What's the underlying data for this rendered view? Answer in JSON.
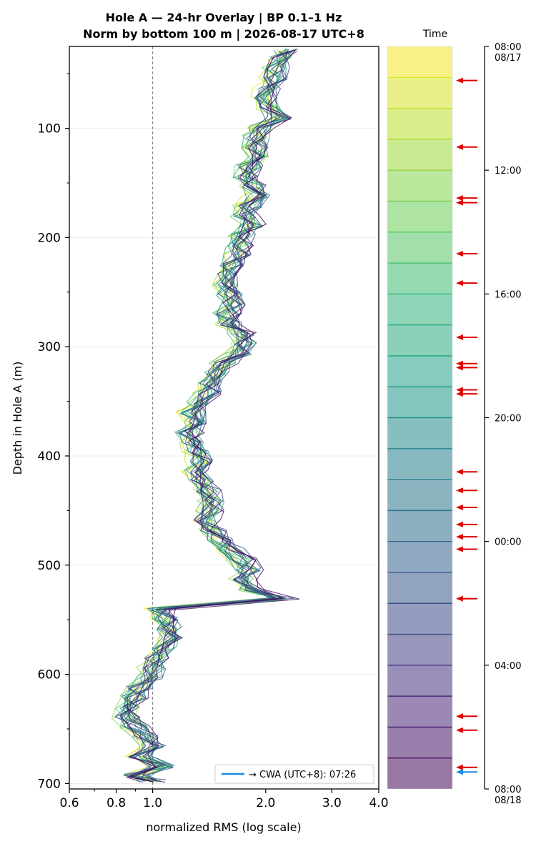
{
  "chart_data": [
    {
      "type": "line",
      "title_line1": "Hole A — 24-hr Overlay  |  BP 0.1–1 Hz",
      "title_line2": "Norm by bottom 100 m  |  2026-08-17 UTC+8",
      "xlabel": "normalized RMS  (log scale)",
      "ylabel": "Depth in Hole A (m)",
      "xscale": "log",
      "xlim": [
        0.6,
        4.0
      ],
      "ylim": [
        705,
        25
      ],
      "x_ticks": [
        0.6,
        0.8,
        1.0,
        2.0,
        3.0,
        4.0
      ],
      "x_tick_labels": [
        "0.6",
        "0.8",
        "1.0",
        "2.0",
        "3.0",
        "4.0"
      ],
      "y_ticks": [
        100,
        200,
        300,
        400,
        500,
        600,
        700
      ],
      "y_tick_labels": [
        "100",
        "200",
        "300",
        "400",
        "500",
        "600",
        "700"
      ],
      "reference_line_x": 1.0,
      "grid": "horizontal",
      "legend": {
        "placement": "lower-right",
        "label": "→ CWA (UTC+8): 07:26",
        "color": "#1e88e5"
      },
      "n_series": 24,
      "colormap": "viridis",
      "series_depth": [
        28,
        36,
        45,
        54,
        63,
        72,
        81,
        90,
        99,
        108,
        117,
        126,
        135,
        144,
        153,
        162,
        171,
        180,
        189,
        198,
        207,
        216,
        225,
        234,
        243,
        252,
        261,
        270,
        279,
        288,
        297,
        306,
        315,
        324,
        333,
        342,
        351,
        360,
        369,
        378,
        387,
        396,
        405,
        414,
        423,
        432,
        441,
        450,
        459,
        468,
        477,
        486,
        495,
        504,
        513,
        522,
        531,
        540,
        549,
        558,
        567,
        576,
        585,
        594,
        603,
        612,
        621,
        630,
        639,
        648,
        657,
        666,
        675,
        684,
        693,
        698
      ],
      "mean_profile_rms": [
        2.28,
        2.2,
        2.13,
        2.1,
        2.02,
        1.98,
        2.05,
        2.15,
        1.93,
        1.9,
        1.88,
        1.92,
        1.82,
        1.78,
        1.85,
        1.9,
        1.8,
        1.75,
        1.85,
        1.72,
        1.7,
        1.68,
        1.62,
        1.55,
        1.58,
        1.6,
        1.62,
        1.58,
        1.6,
        1.72,
        1.78,
        1.7,
        1.55,
        1.48,
        1.42,
        1.4,
        1.32,
        1.28,
        1.3,
        1.25,
        1.27,
        1.3,
        1.34,
        1.32,
        1.35,
        1.4,
        1.45,
        1.42,
        1.38,
        1.45,
        1.5,
        1.62,
        1.72,
        1.8,
        1.75,
        1.85,
        2.25,
        1.05,
        1.08,
        1.1,
        1.12,
        1.08,
        1.02,
        1.0,
        0.98,
        0.92,
        0.9,
        0.87,
        0.85,
        0.9,
        0.95,
        1.0,
        0.92,
        1.05,
        0.9,
        1.0
      ]
    },
    {
      "type": "colorbar",
      "label": "Time",
      "colormap": "viridis",
      "alpha": 0.55,
      "n_bins": 24,
      "tick_labels": [
        "08:00\n08/17",
        "12:00",
        "16:00",
        "20:00",
        "00:00",
        "04:00",
        "08:00\n08/18"
      ],
      "tick_hours_from_start": [
        0,
        4,
        8,
        12,
        16,
        20,
        24
      ],
      "event_marker_color": "#e00000",
      "event_hours_from_start": [
        1.1,
        3.25,
        4.9,
        5.05,
        6.7,
        7.65,
        9.4,
        10.25,
        10.38,
        11.1,
        11.23,
        13.75,
        14.35,
        14.9,
        15.45,
        15.85,
        16.25,
        17.85,
        21.65,
        22.1,
        23.3
      ],
      "highlight_event_hours_from_start": 23.45,
      "highlight_color": "#1e88e5"
    }
  ]
}
